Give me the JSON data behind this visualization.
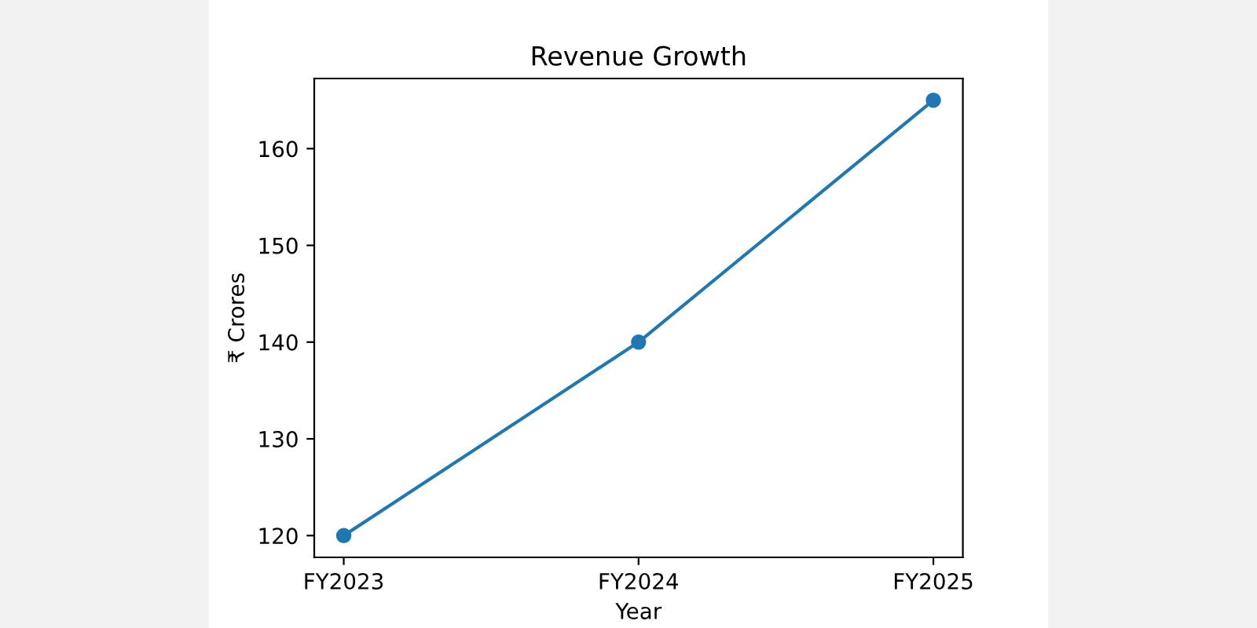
{
  "chart_data": {
    "type": "line",
    "title": "Revenue Growth",
    "xlabel": "Year",
    "ylabel": "₹ Crores",
    "categories": [
      "FY2023",
      "FY2024",
      "FY2025"
    ],
    "series": [
      {
        "color": "#1f77b4",
        "values": [
          120,
          140,
          165
        ]
      }
    ],
    "ylim": [
      117.75,
      167.25
    ],
    "yticks": [
      120,
      130,
      140,
      150,
      160
    ],
    "marker": "circle",
    "line_style": "solid",
    "grid": false
  }
}
